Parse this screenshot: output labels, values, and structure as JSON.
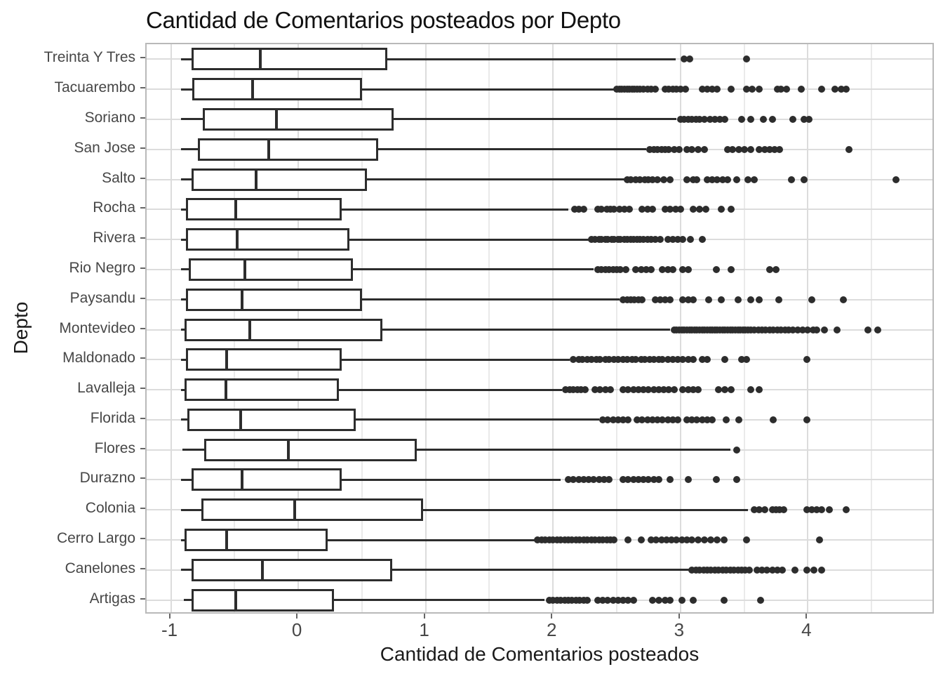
{
  "page": {
    "title": "Cantidad de Comentarios posteados por Depto"
  },
  "chart_data": {
    "type": "boxplot",
    "orientation": "horizontal",
    "title": "Cantidad de Comentarios posteados por Depto",
    "xlabel": "Cantidad de Comentarios posteados",
    "ylabel": "Depto",
    "xlim": [
      -1.19,
      5.0
    ],
    "x_major_ticks": [
      -1,
      0,
      1,
      2,
      3,
      4
    ],
    "x_minor_gridlines": [
      -0.5,
      0.5,
      1.5,
      2.5,
      3.5,
      4.5
    ],
    "grid": true,
    "legend": "none",
    "colors": {
      "background": "#ffffff",
      "box_fill": "#ffffff",
      "stroke": "#2d2d2d",
      "panel_border": "#b9b9b9",
      "grid_major": "#dcdcdc",
      "grid_minor": "#eaeaea",
      "tick": "#666666",
      "tick_label": "#474747",
      "title": "#111111",
      "axis_title": "#1a1a1a"
    },
    "categories_top_to_bottom": [
      "Treinta Y Tres",
      "Tacuarembo",
      "Soriano",
      "San Jose",
      "Salto",
      "Rocha",
      "Rivera",
      "Rio Negro",
      "Paysandu",
      "Montevideo",
      "Maldonado",
      "Lavalleja",
      "Florida",
      "Flores",
      "Durazno",
      "Colonia",
      "Cerro Largo",
      "Canelones",
      "Artigas"
    ],
    "series": [
      {
        "label": "Treinta Y Tres",
        "whisker_low": -0.92,
        "q1": -0.84,
        "median": -0.3,
        "q3": 0.7,
        "whisker_high": 2.96,
        "outliers": [
          3.03,
          3.07,
          3.52
        ]
      },
      {
        "label": "Tacuarembo",
        "whisker_low": -0.92,
        "q1": -0.83,
        "median": -0.36,
        "q3": 0.5,
        "whisker_high": 2.48,
        "outliers": [
          2.5,
          2.52,
          2.54,
          2.56,
          2.58,
          2.6,
          2.62,
          2.64,
          2.66,
          2.68,
          2.71,
          2.74,
          2.77,
          2.8,
          2.88,
          2.91,
          2.94,
          2.97,
          3.0,
          3.04,
          3.17,
          3.21,
          3.25,
          3.29,
          3.4,
          3.52,
          3.56,
          3.62,
          3.76,
          3.79,
          3.83,
          3.95,
          4.11,
          4.21,
          4.26,
          4.3
        ]
      },
      {
        "label": "Soriano",
        "whisker_low": -0.92,
        "q1": -0.75,
        "median": -0.17,
        "q3": 0.75,
        "whisker_high": 2.97,
        "outliers": [
          3.0,
          3.03,
          3.06,
          3.09,
          3.12,
          3.15,
          3.19,
          3.23,
          3.27,
          3.31,
          3.35,
          3.48,
          3.55,
          3.65,
          3.72,
          3.88,
          3.97,
          4.01
        ]
      },
      {
        "label": "San Jose",
        "whisker_low": -0.92,
        "q1": -0.79,
        "median": -0.23,
        "q3": 0.63,
        "whisker_high": 2.73,
        "outliers": [
          2.76,
          2.79,
          2.82,
          2.85,
          2.88,
          2.91,
          2.95,
          2.99,
          3.05,
          3.09,
          3.14,
          3.19,
          3.37,
          3.41,
          3.46,
          3.5,
          3.55,
          3.62,
          3.66,
          3.7,
          3.74,
          3.78,
          4.32
        ]
      },
      {
        "label": "Salto",
        "whisker_low": -0.92,
        "q1": -0.84,
        "median": -0.33,
        "q3": 0.54,
        "whisker_high": 2.56,
        "outliers": [
          2.58,
          2.61,
          2.65,
          2.68,
          2.72,
          2.75,
          2.78,
          2.82,
          2.87,
          2.92,
          3.05,
          3.1,
          3.13,
          3.21,
          3.25,
          3.29,
          3.33,
          3.37,
          3.44,
          3.53,
          3.58,
          3.87,
          3.97,
          4.69
        ]
      },
      {
        "label": "Rocha",
        "whisker_low": -0.92,
        "q1": -0.88,
        "median": -0.49,
        "q3": 0.34,
        "whisker_high": 2.12,
        "outliers": [
          2.17,
          2.2,
          2.24,
          2.35,
          2.38,
          2.42,
          2.45,
          2.48,
          2.52,
          2.56,
          2.6,
          2.7,
          2.74,
          2.78,
          2.88,
          2.92,
          2.96,
          3.0,
          3.1,
          3.15,
          3.2,
          3.32,
          3.4
        ]
      },
      {
        "label": "Rivera",
        "whisker_low": -0.92,
        "q1": -0.88,
        "median": -0.48,
        "q3": 0.4,
        "whisker_high": 2.28,
        "outliers": [
          2.3,
          2.33,
          2.36,
          2.38,
          2.41,
          2.43,
          2.46,
          2.48,
          2.51,
          2.53,
          2.56,
          2.58,
          2.61,
          2.63,
          2.66,
          2.68,
          2.71,
          2.74,
          2.77,
          2.8,
          2.84,
          2.9,
          2.94,
          2.98,
          3.02,
          3.08,
          3.17
        ]
      },
      {
        "label": "Rio Negro",
        "whisker_low": -0.92,
        "q1": -0.86,
        "median": -0.42,
        "q3": 0.43,
        "whisker_high": 2.32,
        "outliers": [
          2.35,
          2.38,
          2.41,
          2.44,
          2.47,
          2.5,
          2.53,
          2.57,
          2.65,
          2.69,
          2.73,
          2.77,
          2.86,
          2.9,
          2.94,
          3.02,
          3.06,
          3.28,
          3.4,
          3.7,
          3.75
        ]
      },
      {
        "label": "Paysandu",
        "whisker_low": -0.92,
        "q1": -0.88,
        "median": -0.44,
        "q3": 0.5,
        "whisker_high": 2.52,
        "outliers": [
          2.55,
          2.58,
          2.61,
          2.64,
          2.67,
          2.7,
          2.8,
          2.84,
          2.88,
          2.92,
          3.02,
          3.06,
          3.1,
          3.22,
          3.32,
          3.45,
          3.55,
          3.62,
          3.77,
          4.03,
          4.28
        ]
      },
      {
        "label": "Montevideo",
        "whisker_low": -0.92,
        "q1": -0.89,
        "median": -0.38,
        "q3": 0.66,
        "whisker_high": 2.92,
        "outliers": [
          2.95,
          2.97,
          2.99,
          3.01,
          3.03,
          3.05,
          3.07,
          3.09,
          3.11,
          3.13,
          3.15,
          3.17,
          3.19,
          3.21,
          3.23,
          3.25,
          3.27,
          3.29,
          3.31,
          3.33,
          3.35,
          3.37,
          3.39,
          3.41,
          3.43,
          3.45,
          3.47,
          3.49,
          3.51,
          3.53,
          3.55,
          3.58,
          3.61,
          3.64,
          3.67,
          3.7,
          3.73,
          3.76,
          3.79,
          3.82,
          3.85,
          3.88,
          3.92,
          3.96,
          4.0,
          4.04,
          4.07,
          4.13,
          4.23,
          4.47,
          4.55
        ]
      },
      {
        "label": "Maldonado",
        "whisker_low": -0.92,
        "q1": -0.88,
        "median": -0.56,
        "q3": 0.34,
        "whisker_high": 2.13,
        "outliers": [
          2.16,
          2.2,
          2.23,
          2.27,
          2.3,
          2.34,
          2.37,
          2.41,
          2.44,
          2.48,
          2.51,
          2.55,
          2.58,
          2.62,
          2.65,
          2.69,
          2.72,
          2.76,
          2.79,
          2.83,
          2.86,
          2.9,
          2.94,
          2.98,
          3.02,
          3.06,
          3.1,
          3.17,
          3.21,
          3.35,
          3.48,
          3.52,
          3.99
        ]
      },
      {
        "label": "Lavalleja",
        "whisker_low": -0.92,
        "q1": -0.89,
        "median": -0.57,
        "q3": 0.32,
        "whisker_high": 2.07,
        "outliers": [
          2.1,
          2.13,
          2.16,
          2.19,
          2.22,
          2.25,
          2.33,
          2.37,
          2.41,
          2.45,
          2.55,
          2.59,
          2.63,
          2.67,
          2.71,
          2.75,
          2.79,
          2.83,
          2.87,
          2.91,
          2.95,
          3.02,
          3.06,
          3.1,
          3.14,
          3.3,
          3.35,
          3.4,
          3.55,
          3.62
        ]
      },
      {
        "label": "Florida",
        "whisker_low": -0.92,
        "q1": -0.87,
        "median": -0.45,
        "q3": 0.45,
        "whisker_high": 2.36,
        "outliers": [
          2.39,
          2.43,
          2.47,
          2.51,
          2.55,
          2.59,
          2.66,
          2.7,
          2.74,
          2.78,
          2.82,
          2.86,
          2.9,
          2.94,
          2.98,
          3.05,
          3.09,
          3.13,
          3.17,
          3.21,
          3.25,
          3.36,
          3.46,
          3.73,
          3.99
        ]
      },
      {
        "label": "Flores",
        "whisker_low": -0.91,
        "q1": -0.74,
        "median": -0.08,
        "q3": 0.93,
        "whisker_high": 3.39,
        "outliers": [
          3.44
        ]
      },
      {
        "label": "Durazno",
        "whisker_low": -0.92,
        "q1": -0.84,
        "median": -0.44,
        "q3": 0.34,
        "whisker_high": 2.06,
        "outliers": [
          2.12,
          2.16,
          2.2,
          2.24,
          2.28,
          2.32,
          2.36,
          2.4,
          2.44,
          2.55,
          2.59,
          2.63,
          2.67,
          2.71,
          2.75,
          2.79,
          2.83,
          2.92,
          3.06,
          3.28,
          3.44
        ]
      },
      {
        "label": "Colonia",
        "whisker_low": -0.92,
        "q1": -0.76,
        "median": -0.03,
        "q3": 0.98,
        "whisker_high": 3.53,
        "outliers": [
          3.58,
          3.62,
          3.66,
          3.72,
          3.75,
          3.78,
          3.81,
          3.99,
          4.03,
          4.07,
          4.11,
          4.17,
          4.3
        ]
      },
      {
        "label": "Cerro Largo",
        "whisker_low": -0.92,
        "q1": -0.89,
        "median": -0.56,
        "q3": 0.23,
        "whisker_high": 1.86,
        "outliers": [
          1.88,
          1.91,
          1.94,
          1.97,
          2.0,
          2.03,
          2.06,
          2.09,
          2.12,
          2.15,
          2.18,
          2.21,
          2.24,
          2.27,
          2.3,
          2.33,
          2.36,
          2.39,
          2.42,
          2.45,
          2.48,
          2.59,
          2.69,
          2.77,
          2.81,
          2.85,
          2.89,
          2.93,
          2.97,
          3.01,
          3.05,
          3.09,
          3.14,
          3.19,
          3.24,
          3.29,
          3.34,
          3.52,
          4.09
        ]
      },
      {
        "label": "Canelones",
        "whisker_low": -0.92,
        "q1": -0.84,
        "median": -0.28,
        "q3": 0.74,
        "whisker_high": 3.07,
        "outliers": [
          3.09,
          3.12,
          3.15,
          3.18,
          3.21,
          3.24,
          3.27,
          3.3,
          3.33,
          3.36,
          3.39,
          3.42,
          3.45,
          3.48,
          3.51,
          3.54,
          3.6,
          3.64,
          3.68,
          3.72,
          3.76,
          3.8,
          3.9,
          3.99,
          4.05,
          4.11
        ]
      },
      {
        "label": "Artigas",
        "whisker_low": -0.9,
        "q1": -0.84,
        "median": -0.49,
        "q3": 0.28,
        "whisker_high": 1.93,
        "outliers": [
          1.97,
          2.0,
          2.03,
          2.06,
          2.09,
          2.12,
          2.15,
          2.18,
          2.21,
          2.24,
          2.27,
          2.35,
          2.39,
          2.43,
          2.47,
          2.51,
          2.55,
          2.59,
          2.63,
          2.78,
          2.83,
          2.88,
          2.92,
          3.01,
          3.1,
          3.34,
          3.63
        ]
      }
    ]
  }
}
